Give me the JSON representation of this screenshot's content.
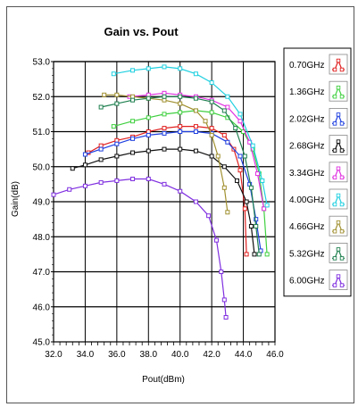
{
  "chart_data": {
    "type": "line",
    "title": "Gain vs. Pout",
    "xlabel": "Pout(dBm)",
    "ylabel": "Gain(dB)",
    "xlim": [
      32.0,
      46.0
    ],
    "ylim": [
      45.0,
      53.0
    ],
    "x_ticks": [
      "32.0",
      "34.0",
      "36.0",
      "38.0",
      "40.0",
      "42.0",
      "44.0",
      "46.0"
    ],
    "y_ticks": [
      "45.0",
      "46.0",
      "47.0",
      "48.0",
      "49.0",
      "50.0",
      "51.0",
      "52.0",
      "53.0"
    ],
    "grid": true,
    "legend_position": "right",
    "series": [
      {
        "name": "0.70GHz",
        "color": "#e02020",
        "points": [
          [
            34.2,
            50.4
          ],
          [
            35,
            50.6
          ],
          [
            36,
            50.75
          ],
          [
            37,
            50.85
          ],
          [
            38,
            51.0
          ],
          [
            39,
            51.1
          ],
          [
            40,
            51.15
          ],
          [
            41,
            51.15
          ],
          [
            42,
            51.1
          ],
          [
            42.8,
            50.9
          ],
          [
            43.4,
            50.5
          ],
          [
            43.8,
            49.9
          ],
          [
            44.1,
            48.8
          ],
          [
            44.2,
            47.5
          ]
        ]
      },
      {
        "name": "1.36GHz",
        "color": "#40d040",
        "points": [
          [
            35.8,
            51.15
          ],
          [
            37,
            51.3
          ],
          [
            38,
            51.4
          ],
          [
            39,
            51.5
          ],
          [
            40,
            51.55
          ],
          [
            41,
            51.6
          ],
          [
            42,
            51.55
          ],
          [
            43,
            51.4
          ],
          [
            44,
            51.0
          ],
          [
            44.6,
            50.5
          ],
          [
            45.0,
            49.8
          ],
          [
            45.3,
            48.8
          ],
          [
            45.5,
            47.5
          ]
        ]
      },
      {
        "name": "2.02GHz",
        "color": "#2040e0",
        "points": [
          [
            34.0,
            50.35
          ],
          [
            35,
            50.5
          ],
          [
            36,
            50.65
          ],
          [
            37,
            50.8
          ],
          [
            38,
            50.9
          ],
          [
            39,
            50.95
          ],
          [
            40,
            51.0
          ],
          [
            41,
            51.0
          ],
          [
            42,
            50.95
          ],
          [
            43,
            50.7
          ],
          [
            43.8,
            50.3
          ],
          [
            44.4,
            49.5
          ],
          [
            44.8,
            48.5
          ],
          [
            45.1,
            47.6
          ]
        ]
      },
      {
        "name": "2.68GHz",
        "color": "#101010",
        "points": [
          [
            33.2,
            49.95
          ],
          [
            34,
            50.05
          ],
          [
            35,
            50.2
          ],
          [
            36,
            50.3
          ],
          [
            37,
            50.4
          ],
          [
            38,
            50.45
          ],
          [
            39,
            50.5
          ],
          [
            40,
            50.5
          ],
          [
            41,
            50.45
          ],
          [
            42,
            50.3
          ],
          [
            42.8,
            50.0
          ],
          [
            43.6,
            49.6
          ],
          [
            44.2,
            49.0
          ],
          [
            44.5,
            48.3
          ],
          [
            44.7,
            47.5
          ]
        ]
      },
      {
        "name": "3.34GHz",
        "color": "#e030e0",
        "points": [
          [
            36.8,
            52.0
          ],
          [
            38,
            52.05
          ],
          [
            39,
            52.1
          ],
          [
            40,
            52.05
          ],
          [
            41,
            52.0
          ],
          [
            42,
            51.9
          ],
          [
            43,
            51.7
          ],
          [
            43.8,
            51.3
          ],
          [
            44.4,
            50.7
          ],
          [
            44.9,
            49.8
          ],
          [
            45.3,
            48.8
          ]
        ]
      },
      {
        "name": "4.00GHz",
        "color": "#20d0e0",
        "points": [
          [
            35.8,
            52.65
          ],
          [
            37,
            52.75
          ],
          [
            38,
            52.8
          ],
          [
            39,
            52.85
          ],
          [
            40,
            52.8
          ],
          [
            41,
            52.65
          ],
          [
            42,
            52.4
          ],
          [
            43,
            52.0
          ],
          [
            43.8,
            51.5
          ],
          [
            44.6,
            50.6
          ],
          [
            45.2,
            49.6
          ],
          [
            45.5,
            48.9
          ]
        ]
      },
      {
        "name": "4.66GHz",
        "color": "#a09030",
        "points": [
          [
            35.2,
            52.05
          ],
          [
            36,
            52.05
          ],
          [
            37,
            52.0
          ],
          [
            38,
            51.95
          ],
          [
            39,
            51.9
          ],
          [
            40,
            51.8
          ],
          [
            41,
            51.6
          ],
          [
            41.6,
            51.3
          ],
          [
            42,
            50.9
          ],
          [
            42.4,
            50.3
          ],
          [
            42.8,
            49.4
          ],
          [
            43.0,
            48.7
          ]
        ]
      },
      {
        "name": "5.32GHz",
        "color": "#208050",
        "points": [
          [
            35.0,
            51.7
          ],
          [
            36,
            51.8
          ],
          [
            37,
            51.9
          ],
          [
            38,
            51.95
          ],
          [
            39,
            52.0
          ],
          [
            40,
            52.0
          ],
          [
            41,
            51.95
          ],
          [
            42,
            51.85
          ],
          [
            42.8,
            51.6
          ],
          [
            43.5,
            51.1
          ],
          [
            44.1,
            50.3
          ],
          [
            44.5,
            49.4
          ],
          [
            44.8,
            48.3
          ],
          [
            45.0,
            47.5
          ]
        ]
      },
      {
        "name": "6.00GHz",
        "color": "#8030e0",
        "points": [
          [
            32.0,
            49.2
          ],
          [
            33,
            49.35
          ],
          [
            34,
            49.45
          ],
          [
            35,
            49.55
          ],
          [
            36,
            49.6
          ],
          [
            37,
            49.65
          ],
          [
            38,
            49.65
          ],
          [
            39,
            49.5
          ],
          [
            40,
            49.3
          ],
          [
            41,
            49.0
          ],
          [
            41.8,
            48.6
          ],
          [
            42.3,
            47.9
          ],
          [
            42.6,
            47.0
          ],
          [
            42.8,
            46.2
          ],
          [
            42.9,
            45.7
          ]
        ]
      }
    ]
  }
}
